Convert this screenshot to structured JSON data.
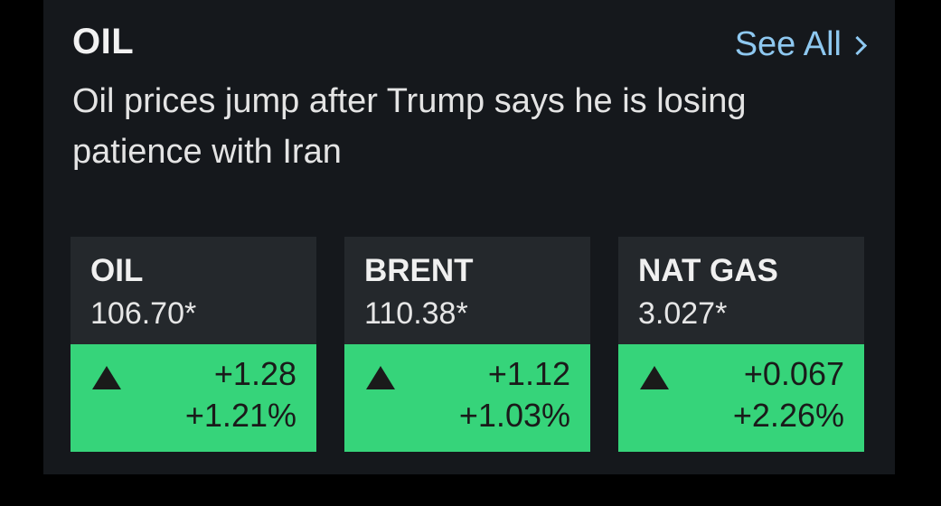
{
  "section": {
    "title": "OIL",
    "see_all": "See All"
  },
  "headline": "Oil prices jump after Trump says he is losing patience with Iran",
  "quotes": [
    {
      "name": "OIL",
      "price": "106.70*",
      "change": "+1.28",
      "change_pct": "+1.21%",
      "direction": "up"
    },
    {
      "name": "BRENT",
      "price": "110.38*",
      "change": "+1.12",
      "change_pct": "+1.03%",
      "direction": "up"
    },
    {
      "name": "NAT GAS",
      "price": "3.027*",
      "change": "+0.067",
      "change_pct": "+2.26%",
      "direction": "up"
    }
  ],
  "colors": {
    "background": "#000000",
    "panel": "#15181c",
    "card": "#24282c",
    "positive": "#36d47a",
    "link": "#8ec8f0"
  },
  "icons": {
    "see_all": "chevron-right-icon",
    "up": "triangle-up-icon"
  }
}
